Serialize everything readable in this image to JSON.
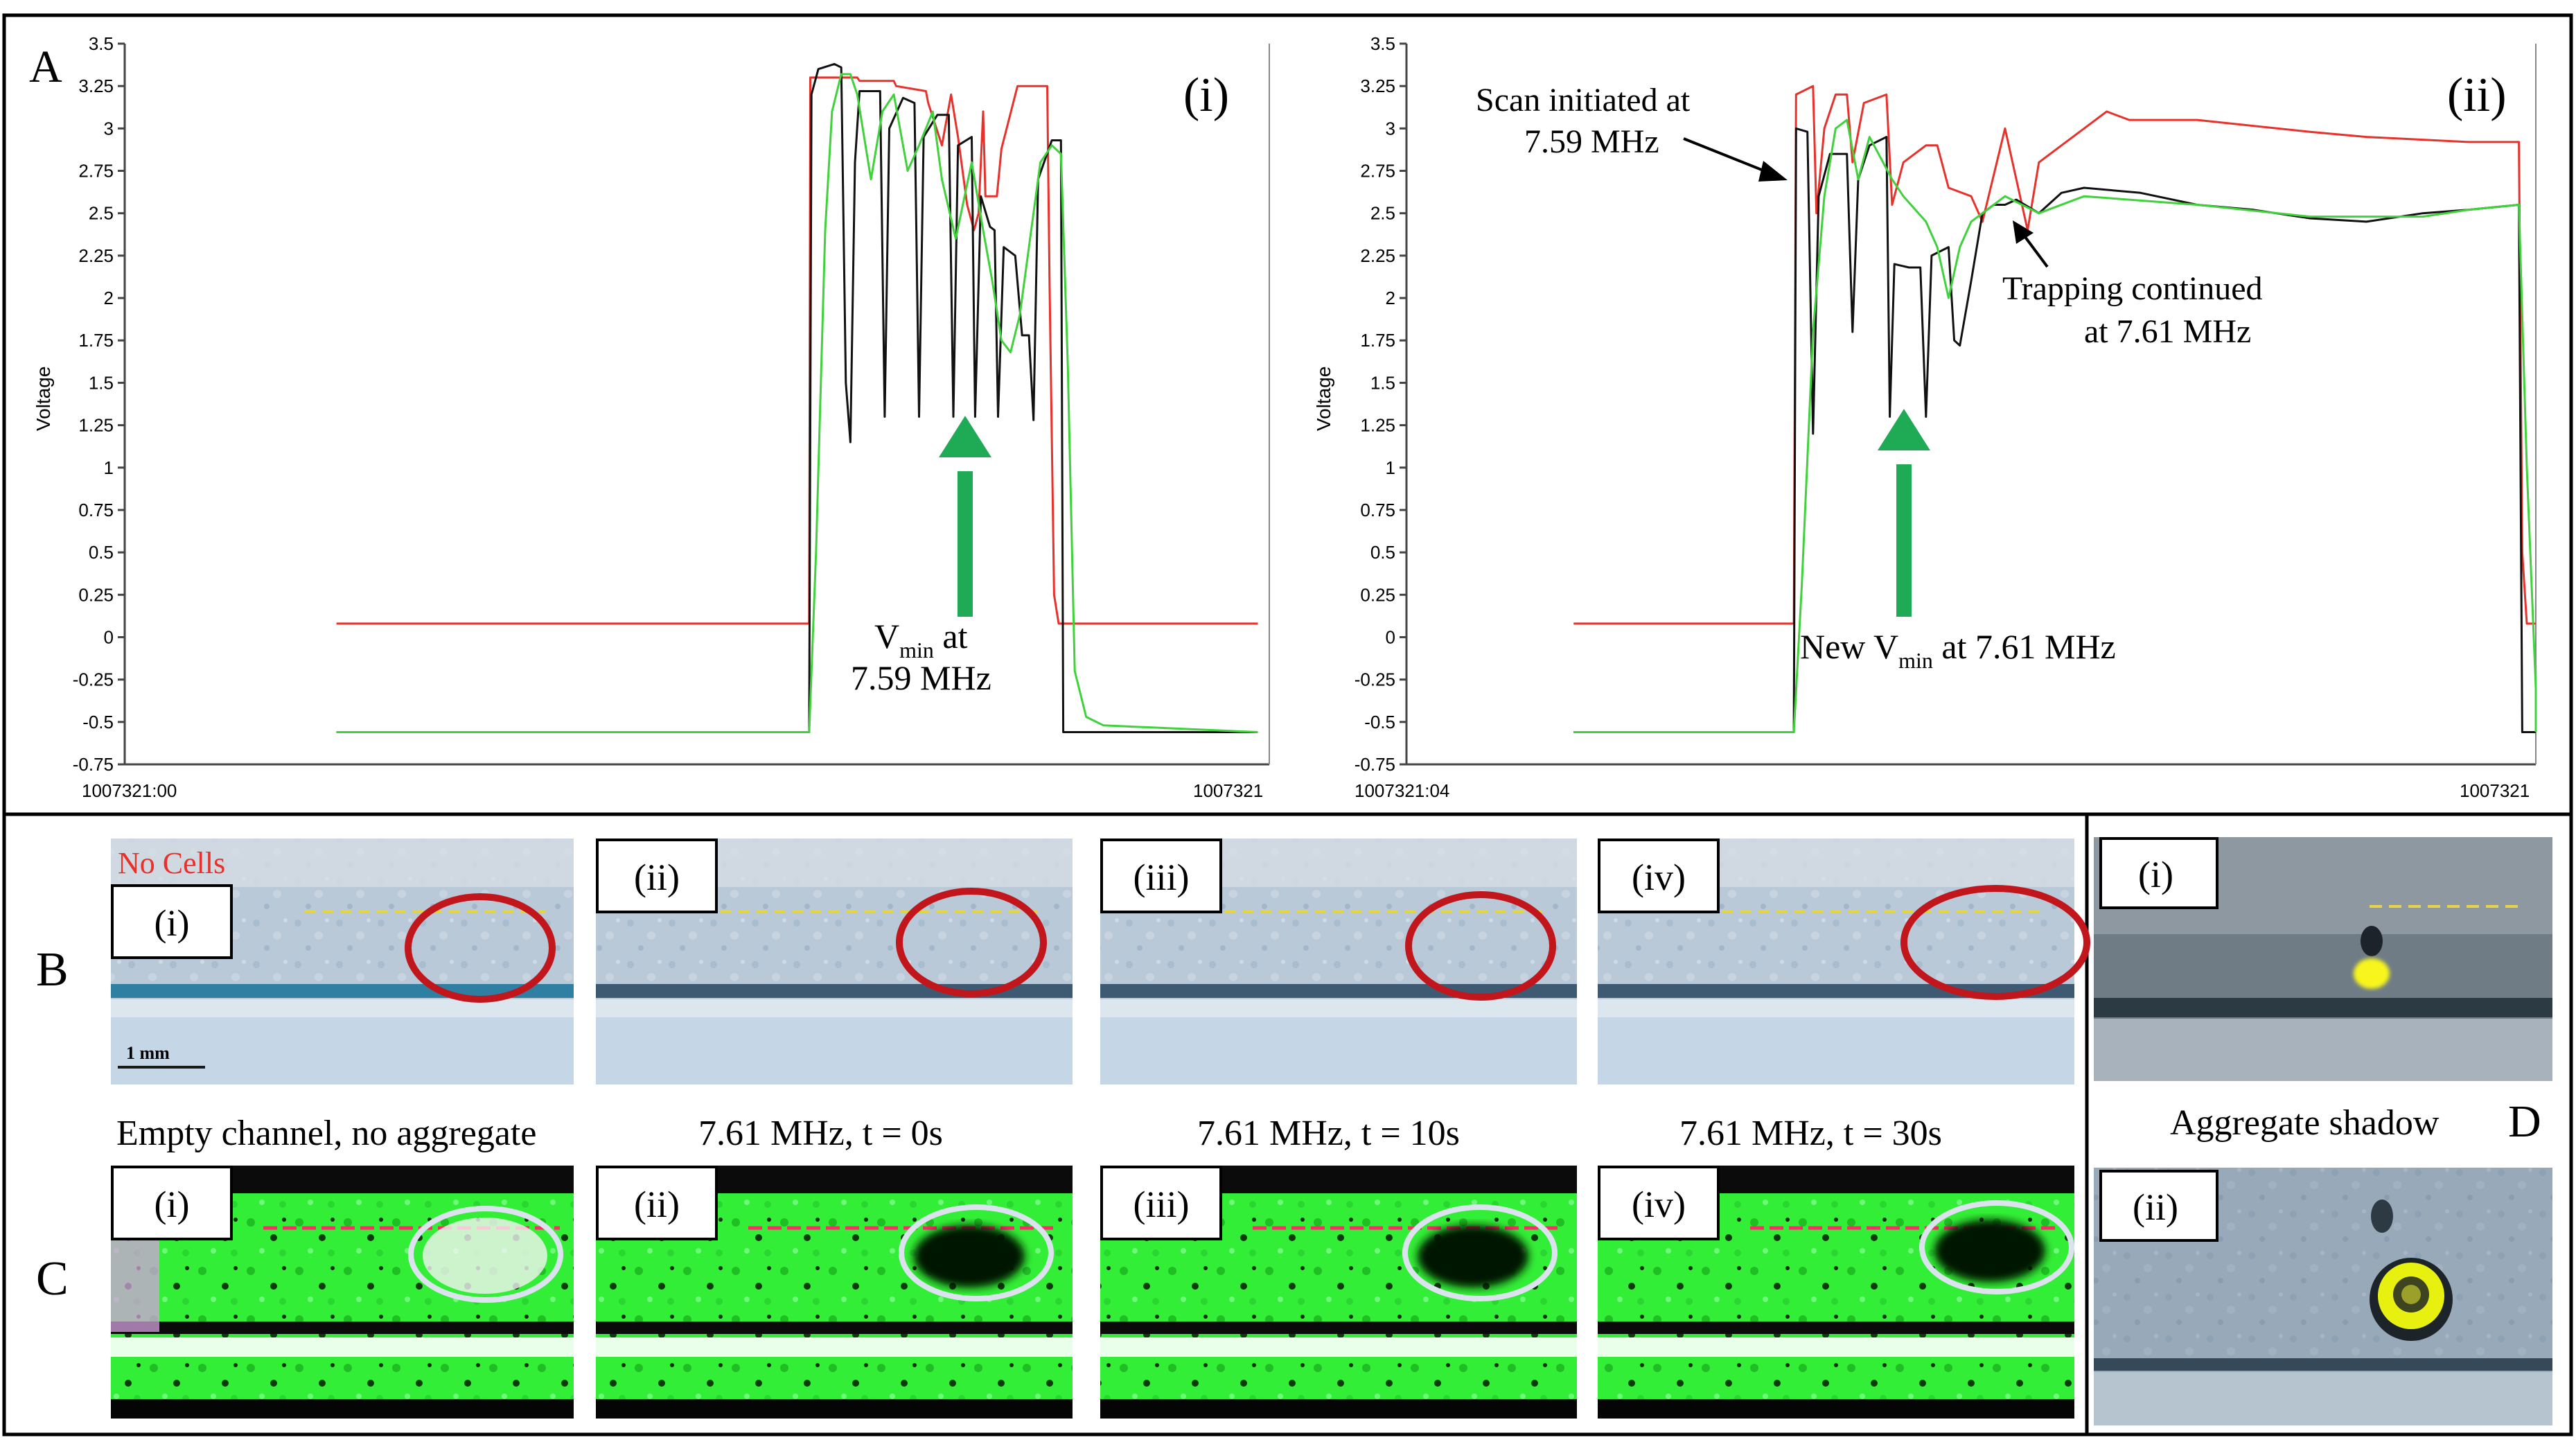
{
  "colors": {
    "red": "#e8312a",
    "black": "#111111",
    "green": "#3fd23a",
    "arrow_green": "#1faa55",
    "circle_red": "#c0161c",
    "circle_white": "#dde3ee",
    "micro_blue": "#b7c7d6",
    "micro_green": "#37f23a"
  },
  "panels": {
    "A": {
      "letter": "A",
      "ylabel": "Voltage",
      "yticks": [
        "3.5",
        "3.25",
        "3",
        "2.75",
        "2.5",
        "2.25",
        "2",
        "1.75",
        "1.5",
        "1.25",
        "1",
        "0.75",
        "0.5",
        "0.25",
        "0",
        "-0.25",
        "-0.5",
        "-0.75"
      ],
      "plot_i": {
        "tag": "(i)",
        "x_start": "1007321:00",
        "x_end": "1007321",
        "note": [
          "V",
          "min",
          " at",
          "7.59 MHz"
        ]
      },
      "plot_ii": {
        "tag": "(ii)",
        "x_start": "1007321:04",
        "x_end": "1007321",
        "scan_note": [
          "Scan initiated at",
          "7.59 MHz"
        ],
        "trap_note": [
          "Trapping continued",
          "at 7.61 MHz"
        ],
        "vmin_note": [
          "New V",
          "min",
          " at 7.61 MHz"
        ]
      }
    },
    "B": {
      "letter": "B",
      "no_cells": "No Cells",
      "scale_bar": "1 mm",
      "tags": [
        "(i)",
        "(ii)",
        "(iii)",
        "(iv)"
      ],
      "captions": [
        "Empty channel, no aggregate",
        "7.61 MHz, t = 0s",
        "7.61 MHz, t = 10s",
        "7.61 MHz, t = 30s"
      ]
    },
    "C": {
      "letter": "C",
      "tags": [
        "(i)",
        "(ii)",
        "(iii)",
        "(iv)"
      ]
    },
    "D": {
      "letter": "D",
      "tags": [
        "(i)",
        "(ii)"
      ],
      "caption": "Aggregate shadow"
    }
  },
  "chart_data": [
    {
      "type": "line",
      "panel": "A(i)",
      "title": "",
      "xlabel": "",
      "ylabel": "Voltage",
      "ylim": [
        -0.75,
        3.5
      ],
      "xlim": [
        0,
        1
      ],
      "xtick_labels": [
        "1007321:00",
        "1007321"
      ],
      "series": [
        {
          "name": "red",
          "color": "#e8312a",
          "points": [
            [
              0.185,
              0.08
            ],
            [
              0.598,
              0.08
            ],
            [
              0.599,
              3.3
            ],
            [
              0.64,
              3.3
            ],
            [
              0.642,
              3.28
            ],
            [
              0.672,
              3.28
            ],
            [
              0.674,
              3.25
            ],
            [
              0.7,
              3.22
            ],
            [
              0.702,
              3.15
            ],
            [
              0.714,
              2.9
            ],
            [
              0.722,
              3.2
            ],
            [
              0.728,
              2.95
            ],
            [
              0.736,
              2.55
            ],
            [
              0.742,
              2.4
            ],
            [
              0.746,
              2.5
            ],
            [
              0.75,
              3.1
            ],
            [
              0.752,
              2.6
            ],
            [
              0.762,
              2.6
            ],
            [
              0.766,
              2.88
            ],
            [
              0.78,
              3.25
            ],
            [
              0.806,
              3.25
            ],
            [
              0.808,
              2.1
            ],
            [
              0.812,
              0.25
            ],
            [
              0.816,
              0.08
            ],
            [
              0.99,
              0.08
            ]
          ]
        },
        {
          "name": "black",
          "color": "#111111",
          "points": [
            [
              0.185,
              -0.56
            ],
            [
              0.598,
              -0.56
            ],
            [
              0.6,
              3.2
            ],
            [
              0.606,
              3.35
            ],
            [
              0.62,
              3.38
            ],
            [
              0.626,
              3.36
            ],
            [
              0.63,
              1.5
            ],
            [
              0.634,
              1.15
            ],
            [
              0.638,
              2.8
            ],
            [
              0.642,
              3.22
            ],
            [
              0.66,
              3.22
            ],
            [
              0.664,
              1.3
            ],
            [
              0.668,
              3.0
            ],
            [
              0.68,
              3.18
            ],
            [
              0.69,
              3.15
            ],
            [
              0.694,
              1.3
            ],
            [
              0.698,
              2.95
            ],
            [
              0.71,
              3.08
            ],
            [
              0.72,
              3.08
            ],
            [
              0.724,
              1.3
            ],
            [
              0.728,
              2.9
            ],
            [
              0.74,
              2.95
            ],
            [
              0.743,
              1.3
            ],
            [
              0.748,
              2.6
            ],
            [
              0.756,
              2.42
            ],
            [
              0.76,
              2.4
            ],
            [
              0.763,
              1.3
            ],
            [
              0.768,
              2.3
            ],
            [
              0.778,
              2.25
            ],
            [
              0.784,
              1.78
            ],
            [
              0.79,
              1.78
            ],
            [
              0.794,
              1.28
            ],
            [
              0.798,
              2.7
            ],
            [
              0.81,
              2.93
            ],
            [
              0.818,
              2.93
            ],
            [
              0.82,
              -0.56
            ],
            [
              0.99,
              -0.56
            ]
          ]
        },
        {
          "name": "green",
          "color": "#3fd23a",
          "points": [
            [
              0.185,
              -0.56
            ],
            [
              0.598,
              -0.56
            ],
            [
              0.604,
              0.5
            ],
            [
              0.612,
              2.4
            ],
            [
              0.618,
              3.1
            ],
            [
              0.626,
              3.32
            ],
            [
              0.634,
              3.32
            ],
            [
              0.64,
              3.2
            ],
            [
              0.652,
              2.7
            ],
            [
              0.662,
              3.1
            ],
            [
              0.672,
              3.2
            ],
            [
              0.684,
              2.75
            ],
            [
              0.694,
              2.9
            ],
            [
              0.706,
              3.1
            ],
            [
              0.714,
              2.7
            ],
            [
              0.726,
              2.35
            ],
            [
              0.74,
              2.8
            ],
            [
              0.75,
              2.4
            ],
            [
              0.758,
              2.1
            ],
            [
              0.766,
              1.75
            ],
            [
              0.774,
              1.68
            ],
            [
              0.782,
              1.9
            ],
            [
              0.79,
              2.3
            ],
            [
              0.8,
              2.8
            ],
            [
              0.81,
              2.9
            ],
            [
              0.818,
              2.85
            ],
            [
              0.824,
              1.6
            ],
            [
              0.83,
              -0.2
            ],
            [
              0.84,
              -0.47
            ],
            [
              0.855,
              -0.52
            ],
            [
              0.99,
              -0.56
            ]
          ]
        }
      ]
    },
    {
      "type": "line",
      "panel": "A(ii)",
      "title": "",
      "xlabel": "",
      "ylabel": "Voltage",
      "ylim": [
        -0.75,
        3.5
      ],
      "xlim": [
        0,
        1
      ],
      "xtick_labels": [
        "1007321:04",
        "1007321"
      ],
      "series": [
        {
          "name": "red",
          "color": "#e8312a",
          "points": [
            [
              0.148,
              0.08
            ],
            [
              0.343,
              0.08
            ],
            [
              0.345,
              3.2
            ],
            [
              0.36,
              3.25
            ],
            [
              0.363,
              2.5
            ],
            [
              0.37,
              3.0
            ],
            [
              0.38,
              3.2
            ],
            [
              0.39,
              3.2
            ],
            [
              0.395,
              2.8
            ],
            [
              0.405,
              3.15
            ],
            [
              0.425,
              3.2
            ],
            [
              0.43,
              2.55
            ],
            [
              0.44,
              2.8
            ],
            [
              0.46,
              2.9
            ],
            [
              0.47,
              2.9
            ],
            [
              0.48,
              2.65
            ],
            [
              0.5,
              2.6
            ],
            [
              0.51,
              2.45
            ],
            [
              0.53,
              3.0
            ],
            [
              0.55,
              2.4
            ],
            [
              0.56,
              2.8
            ],
            [
              0.58,
              2.9
            ],
            [
              0.6,
              3.0
            ],
            [
              0.62,
              3.1
            ],
            [
              0.64,
              3.05
            ],
            [
              0.7,
              3.05
            ],
            [
              0.8,
              2.98
            ],
            [
              0.85,
              2.95
            ],
            [
              0.94,
              2.92
            ],
            [
              0.985,
              2.92
            ],
            [
              0.988,
              0.5
            ],
            [
              0.992,
              0.08
            ],
            [
              1.09,
              0.08
            ]
          ]
        },
        {
          "name": "black",
          "color": "#111111",
          "points": [
            [
              0.148,
              -0.56
            ],
            [
              0.343,
              -0.56
            ],
            [
              0.345,
              3.0
            ],
            [
              0.355,
              2.98
            ],
            [
              0.36,
              1.2
            ],
            [
              0.365,
              2.6
            ],
            [
              0.375,
              2.85
            ],
            [
              0.39,
              2.85
            ],
            [
              0.395,
              1.8
            ],
            [
              0.4,
              2.7
            ],
            [
              0.41,
              2.9
            ],
            [
              0.425,
              2.95
            ],
            [
              0.428,
              1.3
            ],
            [
              0.432,
              2.2
            ],
            [
              0.445,
              2.18
            ],
            [
              0.455,
              2.18
            ],
            [
              0.46,
              1.3
            ],
            [
              0.465,
              2.25
            ],
            [
              0.48,
              2.3
            ],
            [
              0.485,
              1.75
            ],
            [
              0.49,
              1.72
            ],
            [
              0.5,
              2.1
            ],
            [
              0.51,
              2.5
            ],
            [
              0.52,
              2.55
            ],
            [
              0.53,
              2.55
            ],
            [
              0.54,
              2.58
            ],
            [
              0.56,
              2.5
            ],
            [
              0.58,
              2.62
            ],
            [
              0.6,
              2.65
            ],
            [
              0.65,
              2.62
            ],
            [
              0.7,
              2.55
            ],
            [
              0.75,
              2.52
            ],
            [
              0.8,
              2.47
            ],
            [
              0.85,
              2.45
            ],
            [
              0.9,
              2.5
            ],
            [
              0.94,
              2.52
            ],
            [
              0.985,
              2.55
            ],
            [
              0.988,
              -0.56
            ],
            [
              1.09,
              -0.56
            ]
          ]
        },
        {
          "name": "green",
          "color": "#3fd23a",
          "points": [
            [
              0.148,
              -0.56
            ],
            [
              0.343,
              -0.56
            ],
            [
              0.35,
              0.3
            ],
            [
              0.36,
              1.8
            ],
            [
              0.37,
              2.6
            ],
            [
              0.38,
              3.0
            ],
            [
              0.39,
              3.05
            ],
            [
              0.4,
              2.7
            ],
            [
              0.41,
              2.95
            ],
            [
              0.43,
              2.7
            ],
            [
              0.44,
              2.6
            ],
            [
              0.46,
              2.45
            ],
            [
              0.47,
              2.3
            ],
            [
              0.48,
              2.0
            ],
            [
              0.49,
              2.3
            ],
            [
              0.5,
              2.45
            ],
            [
              0.51,
              2.5
            ],
            [
              0.53,
              2.6
            ],
            [
              0.56,
              2.5
            ],
            [
              0.6,
              2.6
            ],
            [
              0.7,
              2.55
            ],
            [
              0.8,
              2.48
            ],
            [
              0.9,
              2.48
            ],
            [
              0.94,
              2.52
            ],
            [
              0.985,
              2.55
            ],
            [
              0.992,
              1.0
            ],
            [
              1.0,
              -0.3
            ],
            [
              1.02,
              -0.52
            ],
            [
              1.09,
              -0.56
            ]
          ]
        }
      ]
    }
  ]
}
